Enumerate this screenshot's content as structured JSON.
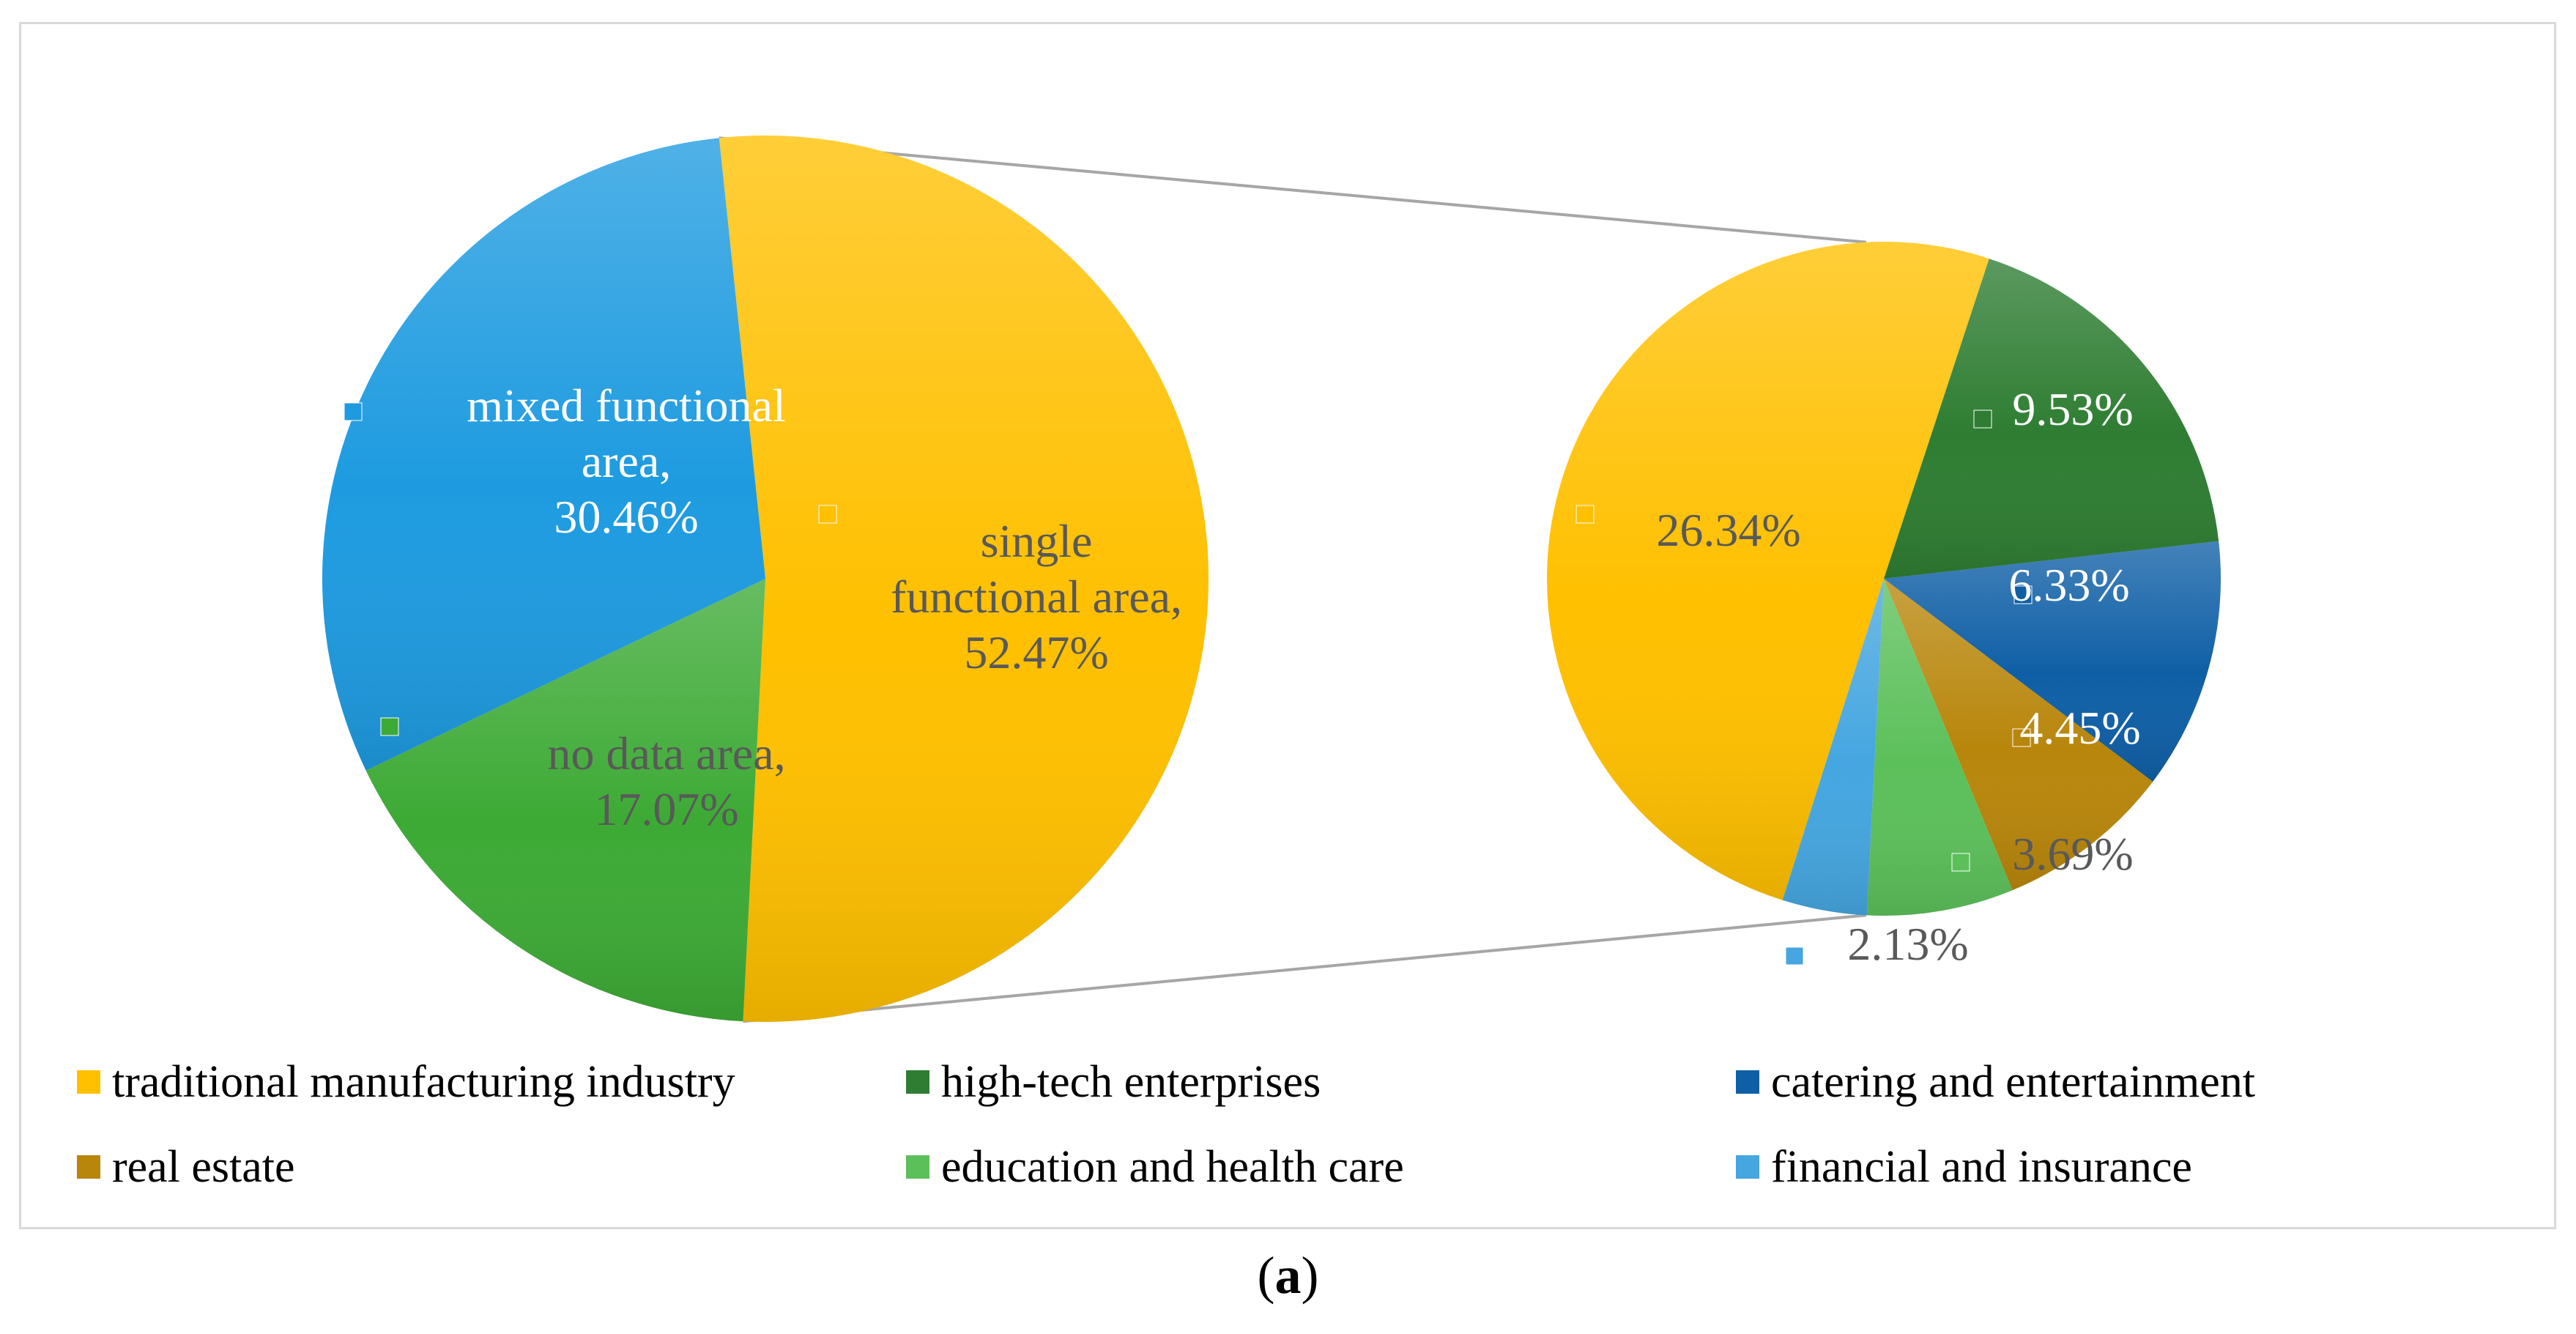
{
  "caption": {
    "open": "(",
    "letter": "a",
    "close": ")"
  },
  "chart_data": [
    {
      "type": "pie",
      "title": "",
      "slices": [
        {
          "name": "single functional area",
          "label_lines": [
            "single",
            "functional area,",
            "52.47%"
          ],
          "value": 52.47,
          "color": "#FFC000",
          "label_color": "#595959"
        },
        {
          "name": "no data area",
          "label_lines": [
            "no data area,",
            "17.07%"
          ],
          "value": 17.07,
          "color": "#3DAA35",
          "label_color": "#595959"
        },
        {
          "name": "mixed functional area",
          "label_lines": [
            "mixed functional",
            "area,",
            "30.46%"
          ],
          "value": 30.46,
          "color": "#1E9BE0",
          "label_color": "#FFFFFF"
        }
      ]
    },
    {
      "type": "pie",
      "title": "",
      "slices": [
        {
          "name": "traditional manufacturing industry",
          "value": 26.34,
          "label": "26.34%",
          "color": "#FFC000",
          "label_color": "#595959"
        },
        {
          "name": "high-tech enterprises",
          "value": 9.53,
          "label": "9.53%",
          "color": "#2E7D32",
          "label_color": "#FFFFFF"
        },
        {
          "name": "catering and entertainment",
          "value": 6.33,
          "label": "6.33%",
          "color": "#0F5FA6",
          "label_color": "#FFFFFF"
        },
        {
          "name": "real estate",
          "value": 4.45,
          "label": "4.45%",
          "color": "#B8860B",
          "label_color": "#FFFFFF"
        },
        {
          "name": "education and health care",
          "value": 3.69,
          "label": "3.69%",
          "color": "#5CC05A",
          "label_color": "#595959"
        },
        {
          "name": "financial and insurance",
          "value": 2.13,
          "label": "2.13%",
          "color": "#45A6E0",
          "label_color": "#595959"
        }
      ]
    }
  ],
  "legend": [
    {
      "label": "traditional manufacturing industry",
      "color": "#FFC000"
    },
    {
      "label": "high-tech enterprises",
      "color": "#2E7D32"
    },
    {
      "label": "catering and entertainment",
      "color": "#0F5FA6"
    },
    {
      "label": "real estate",
      "color": "#B8860B"
    },
    {
      "label": "education and health care",
      "color": "#5CC05A"
    },
    {
      "label": "financial and insurance",
      "color": "#45A6E0"
    }
  ]
}
